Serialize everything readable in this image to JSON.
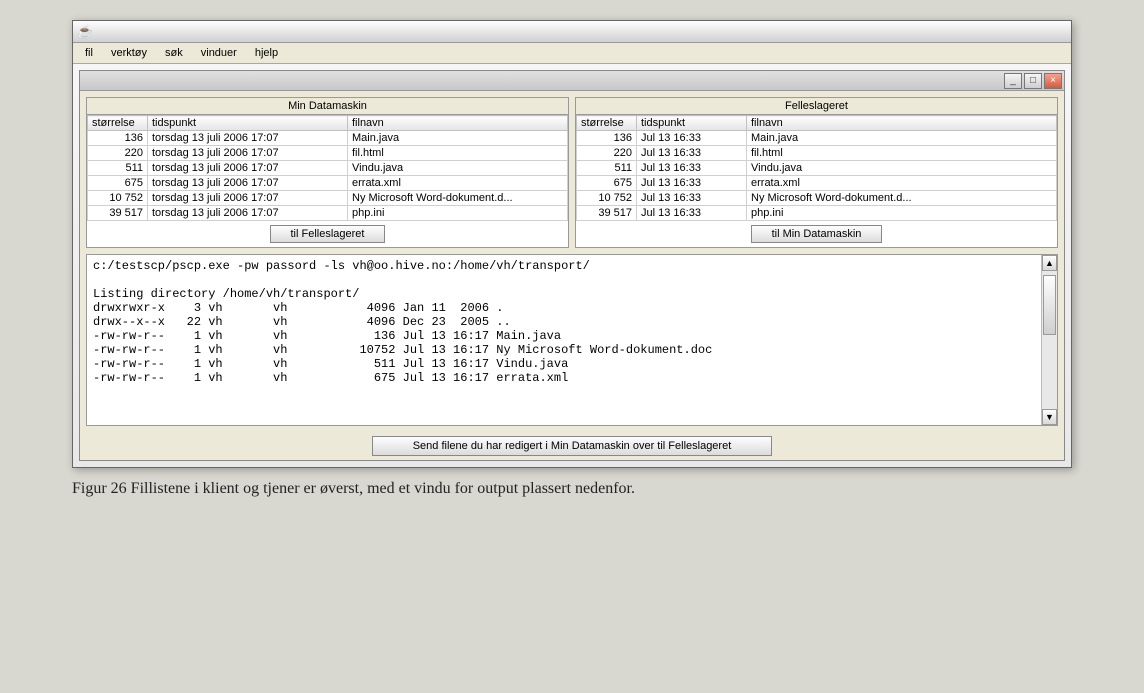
{
  "menubar": {
    "items": [
      "fil",
      "verktøy",
      "søk",
      "vinduer",
      "hjelp"
    ]
  },
  "left_panel": {
    "title": "Min Datamaskin",
    "columns": [
      "størrelse",
      "tidspunkt",
      "filnavn"
    ],
    "col_widths": [
      "60px",
      "200px",
      "auto"
    ],
    "rows": [
      {
        "size": "136",
        "time": "torsdag 13 juli 2006 17:07",
        "name": "Main.java"
      },
      {
        "size": "220",
        "time": "torsdag 13 juli 2006 17:07",
        "name": "fil.html"
      },
      {
        "size": "511",
        "time": "torsdag 13 juli 2006 17:07",
        "name": "Vindu.java"
      },
      {
        "size": "675",
        "time": "torsdag 13 juli 2006 17:07",
        "name": "errata.xml"
      },
      {
        "size": "10 752",
        "time": "torsdag 13 juli 2006 17:07",
        "name": "Ny Microsoft Word-dokument.d..."
      },
      {
        "size": "39 517",
        "time": "torsdag 13 juli 2006 17:07",
        "name": "php.ini"
      }
    ],
    "button_label": "til Felleslageret"
  },
  "right_panel": {
    "title": "Felleslageret",
    "columns": [
      "størrelse",
      "tidspunkt",
      "filnavn"
    ],
    "col_widths": [
      "60px",
      "110px",
      "auto"
    ],
    "rows": [
      {
        "size": "136",
        "time": "Jul 13 16:33",
        "name": "Main.java"
      },
      {
        "size": "220",
        "time": "Jul 13 16:33",
        "name": "fil.html"
      },
      {
        "size": "511",
        "time": "Jul 13 16:33",
        "name": "Vindu.java"
      },
      {
        "size": "675",
        "time": "Jul 13 16:33",
        "name": "errata.xml"
      },
      {
        "size": "10 752",
        "time": "Jul 13 16:33",
        "name": "Ny Microsoft Word-dokument.d..."
      },
      {
        "size": "39 517",
        "time": "Jul 13 16:33",
        "name": "php.ini"
      }
    ],
    "button_label": "til Min Datamaskin"
  },
  "terminal": {
    "lines": [
      "c:/testscp/pscp.exe -pw passord -ls vh@oo.hive.no:/home/vh/transport/",
      "",
      "Listing directory /home/vh/transport/",
      "drwxrwxr-x    3 vh       vh           4096 Jan 11  2006 .",
      "drwx--x--x   22 vh       vh           4096 Dec 23  2005 ..",
      "-rw-rw-r--    1 vh       vh            136 Jul 13 16:17 Main.java",
      "-rw-rw-r--    1 vh       vh          10752 Jul 13 16:17 Ny Microsoft Word-dokument.doc",
      "-rw-rw-r--    1 vh       vh            511 Jul 13 16:17 Vindu.java",
      "-rw-rw-r--    1 vh       vh            675 Jul 13 16:17 errata.xml"
    ]
  },
  "status_button": "Send filene du har redigert i Min Datamaskin over til Felleslageret",
  "caption": "Figur 26 Fillistene i klient og tjener er øverst, med et vindu for output plassert nedenfor.",
  "colors": {
    "window_bg": "#ece9d8",
    "border": "#999999",
    "header_grad_top": "#fefefe",
    "header_grad_bot": "#d0d0d0"
  }
}
